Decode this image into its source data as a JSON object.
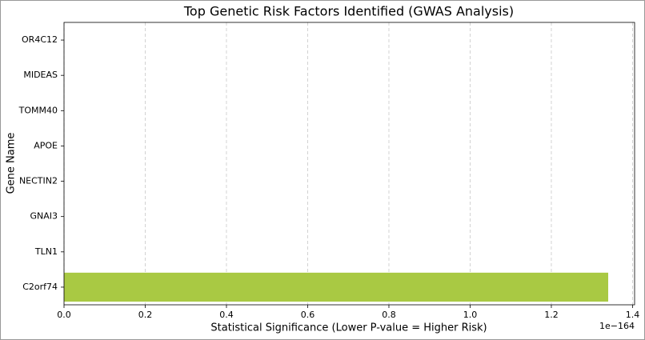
{
  "chart_data": {
    "type": "barh",
    "title": "Top Genetic Risk Factors Identified (GWAS Analysis)",
    "x_label": "Statistical Significance (Lower P-value = Higher Risk)",
    "y_label": "Gene Name",
    "x_offset_label": "1e−164",
    "categories": [
      "OR4C12",
      "MIDEAS",
      "TOMM40",
      "APOE",
      "NECTIN2",
      "GNAI3",
      "TLN1",
      "C2orf74"
    ],
    "values": [
      0,
      0,
      0,
      0,
      0,
      0,
      0,
      1.34
    ],
    "color": "#a9c943",
    "xlim": [
      0,
      1.405
    ],
    "xticks": [
      {
        "value": 0,
        "label": "0.0"
      },
      0.2,
      0.4,
      0.6,
      0.8,
      {
        "value": 1,
        "label": "1.0"
      },
      1.2,
      1.4
    ],
    "grid": true
  }
}
